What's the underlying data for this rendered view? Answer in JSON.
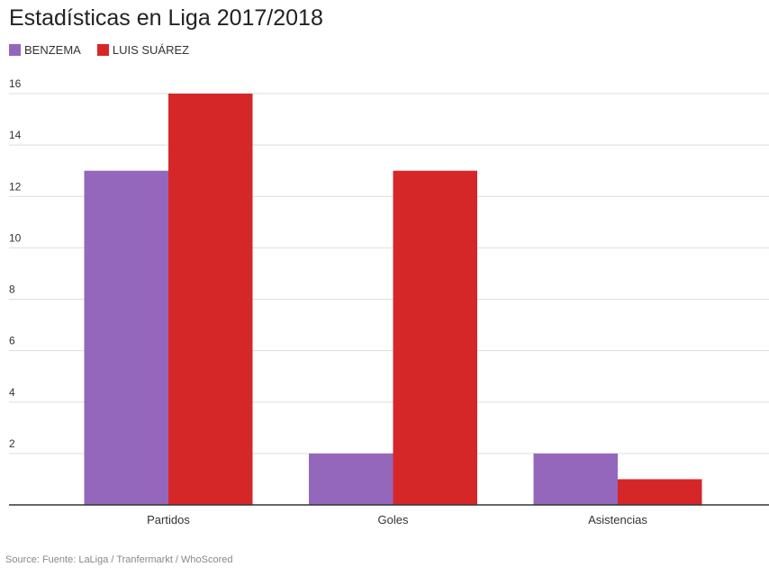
{
  "chart_data": {
    "type": "bar",
    "title": "Estadísticas en Liga 2017/2018",
    "categories": [
      "Partidos",
      "Goles",
      "Asistencias"
    ],
    "series": [
      {
        "name": "BENZEMA",
        "color": "#9467bd",
        "values": [
          13,
          2,
          2
        ]
      },
      {
        "name": "LUIS SUÁREZ",
        "color": "#d62728",
        "values": [
          16,
          13,
          1
        ]
      }
    ],
    "yticks": [
      2,
      4,
      6,
      8,
      10,
      12,
      14,
      16
    ],
    "ylim": [
      0,
      16
    ],
    "xlabel": "",
    "ylabel": "",
    "grid": true,
    "legend": "top-left",
    "source": "Source: Fuente: LaLiga / Tranfermarkt / WhoScored"
  }
}
